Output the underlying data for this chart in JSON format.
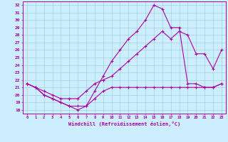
{
  "xlabel": "Windchill (Refroidissement éolien,°C)",
  "ylabel": "",
  "background_color": "#cceeff",
  "line_color": "#aa00aa",
  "grid_color": "#99cccc",
  "xlim": [
    -0.5,
    23.5
  ],
  "ylim": [
    17.5,
    32.5
  ],
  "xticks": [
    0,
    1,
    2,
    3,
    4,
    5,
    6,
    7,
    8,
    9,
    10,
    11,
    12,
    13,
    14,
    15,
    16,
    17,
    18,
    19,
    20,
    21,
    22,
    23
  ],
  "yticks": [
    18,
    19,
    20,
    21,
    22,
    23,
    24,
    25,
    26,
    27,
    28,
    29,
    30,
    31,
    32
  ],
  "series": [
    {
      "x": [
        0,
        1,
        2,
        3,
        4,
        5,
        6,
        7,
        8,
        9,
        10,
        11,
        12,
        13,
        14,
        15,
        16,
        17,
        18,
        19,
        20,
        21,
        22,
        23
      ],
      "y": [
        21.5,
        21.0,
        20.0,
        19.5,
        19.0,
        18.5,
        18.0,
        18.5,
        20.5,
        22.5,
        24.5,
        26.0,
        27.5,
        28.5,
        30.0,
        32.0,
        31.5,
        29.0,
        29.0,
        21.5,
        21.5,
        21.0,
        21.0,
        21.5
      ]
    },
    {
      "x": [
        0,
        1,
        2,
        3,
        4,
        5,
        6,
        7,
        8,
        9,
        10,
        11,
        12,
        13,
        14,
        15,
        16,
        17,
        18,
        19,
        20,
        21,
        22,
        23
      ],
      "y": [
        21.5,
        21.0,
        20.5,
        20.0,
        19.5,
        19.5,
        19.5,
        20.5,
        21.5,
        22.0,
        22.5,
        23.5,
        24.5,
        25.5,
        26.5,
        27.5,
        28.5,
        27.5,
        28.5,
        28.0,
        25.5,
        25.5,
        23.5,
        26.0
      ]
    },
    {
      "x": [
        0,
        1,
        2,
        3,
        4,
        5,
        6,
        7,
        8,
        9,
        10,
        11,
        12,
        13,
        14,
        15,
        16,
        17,
        18,
        19,
        20,
        21,
        22,
        23
      ],
      "y": [
        21.5,
        21.0,
        20.0,
        19.5,
        19.0,
        18.5,
        18.5,
        18.5,
        19.5,
        20.5,
        21.0,
        21.0,
        21.0,
        21.0,
        21.0,
        21.0,
        21.0,
        21.0,
        21.0,
        21.0,
        21.0,
        21.0,
        21.0,
        21.5
      ]
    }
  ]
}
